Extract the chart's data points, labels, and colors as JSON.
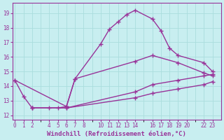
{
  "background_color": "#c8eef0",
  "grid_color": "#aadddd",
  "line_color": "#993399",
  "line_width": 1.0,
  "marker": "+",
  "marker_size": 5,
  "marker_edge_width": 1.0,
  "xlabel": "Windchill (Refroidissement éolien,°C)",
  "xlabel_fontsize": 6.5,
  "tick_fontsize": 5.5,
  "xticks": [
    0,
    1,
    2,
    4,
    5,
    6,
    7,
    8,
    10,
    11,
    12,
    13,
    14,
    16,
    17,
    18,
    19,
    20,
    22,
    23
  ],
  "yticks": [
    12,
    13,
    14,
    15,
    16,
    17,
    18,
    19
  ],
  "xlim": [
    -0.3,
    24.0
  ],
  "ylim": [
    11.7,
    19.7
  ],
  "series": [
    {
      "x": [
        0,
        1,
        2,
        4,
        5,
        6,
        7,
        10,
        11,
        12,
        13,
        14,
        16,
        17,
        18,
        19,
        22,
        23
      ],
      "y": [
        14.4,
        13.3,
        12.5,
        12.5,
        12.5,
        12.6,
        14.5,
        16.9,
        17.9,
        18.4,
        18.9,
        19.2,
        18.6,
        17.8,
        16.6,
        16.1,
        15.6,
        15.0
      ]
    },
    {
      "x": [
        0,
        6,
        7,
        14,
        16,
        19,
        22,
        23
      ],
      "y": [
        14.4,
        12.6,
        14.5,
        15.7,
        16.1,
        15.6,
        14.9,
        14.7
      ]
    },
    {
      "x": [
        2,
        6,
        14,
        16,
        19,
        22,
        23
      ],
      "y": [
        12.5,
        12.5,
        13.6,
        14.1,
        14.4,
        14.7,
        14.8
      ]
    },
    {
      "x": [
        2,
        6,
        14,
        16,
        19,
        22,
        23
      ],
      "y": [
        12.5,
        12.5,
        13.2,
        13.5,
        13.8,
        14.1,
        14.3
      ]
    }
  ]
}
